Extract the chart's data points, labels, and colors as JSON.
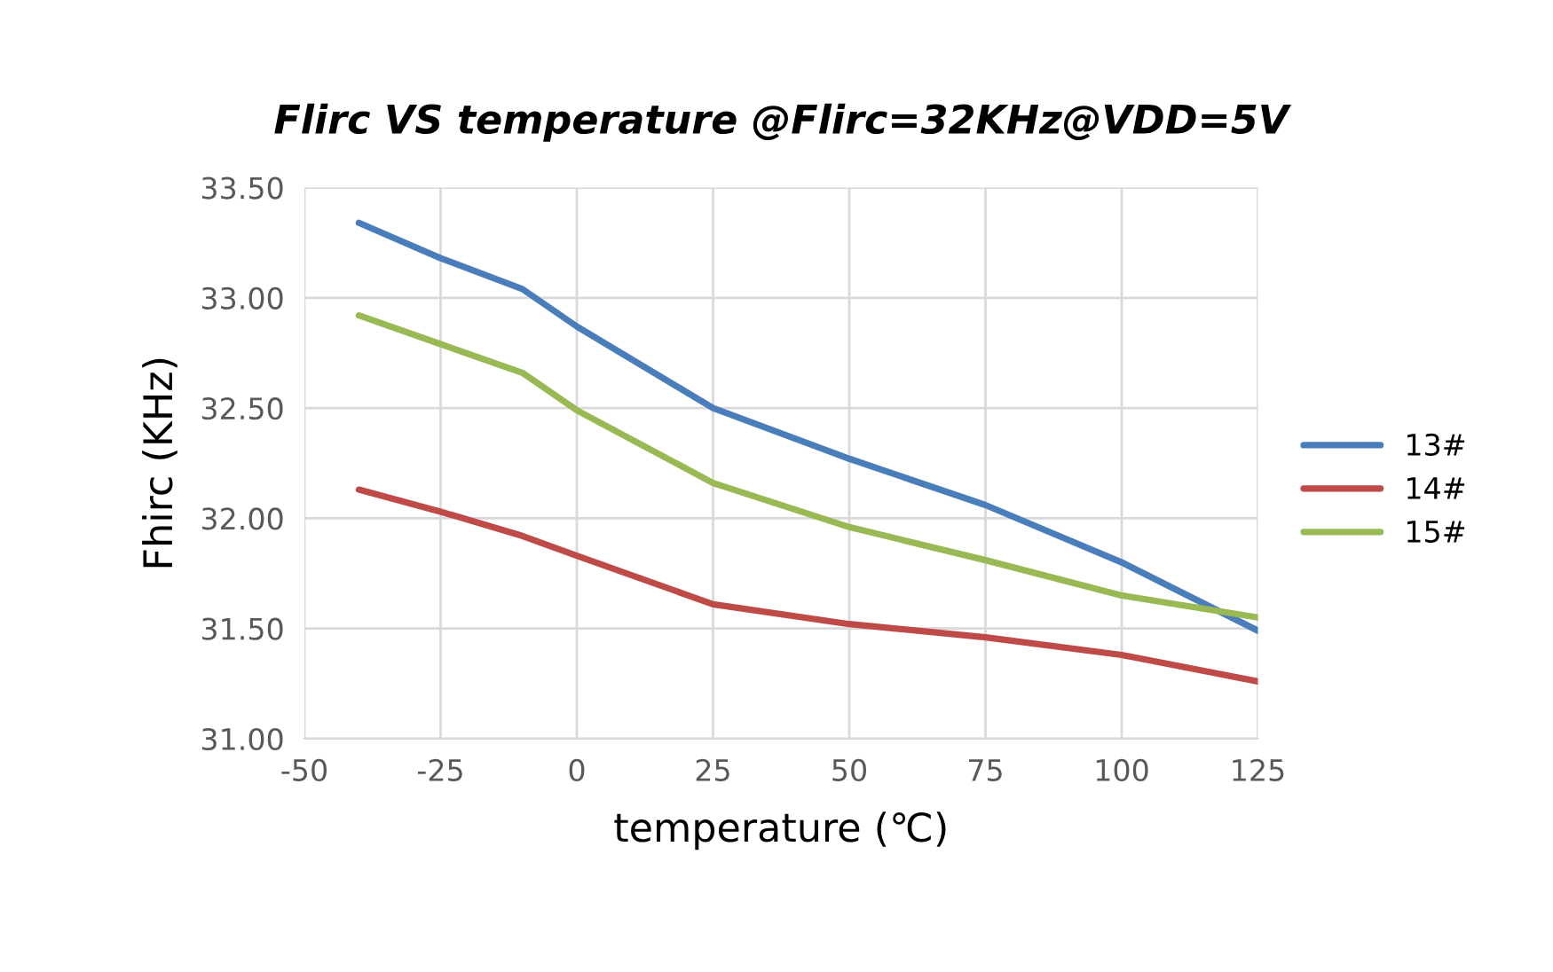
{
  "chart_data": {
    "type": "line",
    "title": "Flirc VS temperature @Flirc=32KHz@VDD=5V",
    "xlabel": "temperature (℃)",
    "ylabel": "Fhirc (KHz)",
    "x": [
      -40,
      -25,
      -10,
      0,
      25,
      50,
      75,
      100,
      125
    ],
    "series": [
      {
        "name": "13#",
        "color": "#4a7ebb",
        "values": [
          33.34,
          33.18,
          33.04,
          32.87,
          32.5,
          32.27,
          32.06,
          31.8,
          31.49
        ]
      },
      {
        "name": "14#",
        "color": "#be4b48",
        "values": [
          32.13,
          32.03,
          31.92,
          31.83,
          31.61,
          31.52,
          31.46,
          31.38,
          31.26
        ]
      },
      {
        "name": "15#",
        "color": "#98b954",
        "values": [
          32.92,
          32.79,
          32.66,
          32.49,
          32.16,
          31.96,
          31.81,
          31.65,
          31.55
        ]
      }
    ],
    "xlim": [
      -50,
      125
    ],
    "xticks": [
      -50,
      -25,
      0,
      25,
      50,
      75,
      100,
      125
    ],
    "ylim": [
      31.0,
      33.5
    ],
    "yticks": [
      {
        "value": 31.0,
        "label": "31.00"
      },
      {
        "value": 31.5,
        "label": "31.50"
      },
      {
        "value": 32.0,
        "label": "32.00"
      },
      {
        "value": 32.5,
        "label": "32.50"
      },
      {
        "value": 33.0,
        "label": "33.00"
      },
      {
        "value": 33.5,
        "label": "33.50"
      }
    ],
    "grid": true,
    "legend": "right",
    "marker": "none",
    "line_style": "solid"
  }
}
